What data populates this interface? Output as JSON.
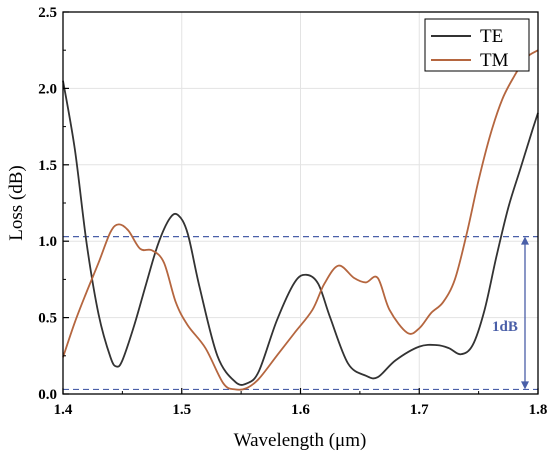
{
  "chart_data": {
    "type": "line",
    "xlabel": "Wavelength (μm)",
    "ylabel": "Loss (dB)",
    "xlim": [
      1.4,
      1.8
    ],
    "ylim": [
      0.0,
      2.5
    ],
    "xticks": [
      1.4,
      1.5,
      1.6,
      1.7,
      1.8
    ],
    "xtick_labels": [
      "1.4",
      "1.5",
      "1.6",
      "1.7",
      "1.8"
    ],
    "yticks": [
      0.0,
      0.5,
      1.0,
      1.5,
      2.0,
      2.5
    ],
    "ytick_labels": [
      "0.0",
      "0.5",
      "1.0",
      "1.5",
      "2.0",
      "2.5"
    ],
    "grid": true,
    "legend_position": "top-right",
    "series": [
      {
        "name": "TE",
        "color": "#333333",
        "x": [
          1.4,
          1.41,
          1.42,
          1.43,
          1.44,
          1.445,
          1.45,
          1.46,
          1.47,
          1.48,
          1.49,
          1.497,
          1.505,
          1.515,
          1.53,
          1.545,
          1.555,
          1.565,
          1.58,
          1.595,
          1.605,
          1.615,
          1.625,
          1.64,
          1.655,
          1.665,
          1.68,
          1.7,
          1.715,
          1.725,
          1.735,
          1.745,
          1.755,
          1.765,
          1.775,
          1.785,
          1.795,
          1.8
        ],
        "y": [
          2.05,
          1.6,
          0.98,
          0.52,
          0.24,
          0.18,
          0.22,
          0.45,
          0.72,
          0.98,
          1.15,
          1.17,
          1.05,
          0.7,
          0.25,
          0.08,
          0.07,
          0.15,
          0.48,
          0.73,
          0.78,
          0.72,
          0.5,
          0.2,
          0.12,
          0.11,
          0.22,
          0.31,
          0.32,
          0.3,
          0.26,
          0.32,
          0.55,
          0.9,
          1.22,
          1.47,
          1.72,
          1.84
        ]
      },
      {
        "name": "TM",
        "color": "#b5663f",
        "x": [
          1.4,
          1.41,
          1.42,
          1.43,
          1.44,
          1.447,
          1.455,
          1.465,
          1.475,
          1.485,
          1.495,
          1.505,
          1.52,
          1.535,
          1.545,
          1.555,
          1.565,
          1.58,
          1.595,
          1.61,
          1.62,
          1.632,
          1.645,
          1.655,
          1.665,
          1.675,
          1.69,
          1.7,
          1.71,
          1.72,
          1.73,
          1.74,
          1.75,
          1.76,
          1.77,
          1.78,
          1.79,
          1.8
        ],
        "y": [
          0.24,
          0.47,
          0.67,
          0.86,
          1.06,
          1.11,
          1.07,
          0.95,
          0.94,
          0.86,
          0.6,
          0.45,
          0.3,
          0.07,
          0.03,
          0.04,
          0.1,
          0.25,
          0.4,
          0.55,
          0.72,
          0.84,
          0.76,
          0.73,
          0.76,
          0.55,
          0.4,
          0.43,
          0.53,
          0.6,
          0.75,
          1.05,
          1.4,
          1.7,
          1.93,
          2.08,
          2.2,
          2.25
        ]
      }
    ],
    "reference_lines": [
      1.03,
      0.03
    ],
    "annotation": "1dB"
  }
}
